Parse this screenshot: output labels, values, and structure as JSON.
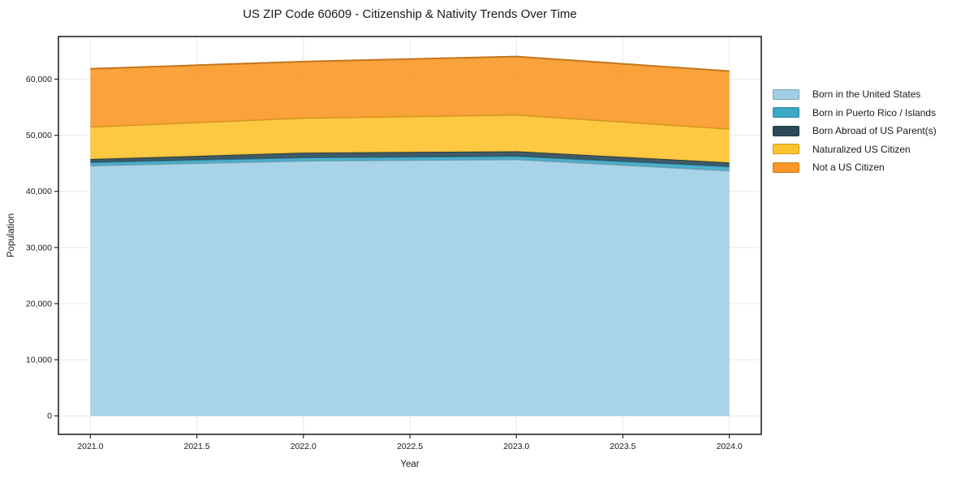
{
  "title": "US ZIP Code 60609 - Citizenship & Nativity Trends Over Time",
  "chart_data": {
    "type": "area",
    "stacked": true,
    "title": "US ZIP Code 60609 - Citizenship & Nativity Trends Over Time",
    "xlabel": "Year",
    "ylabel": "Population",
    "x": [
      2021,
      2022,
      2023,
      2024
    ],
    "series": [
      {
        "name": "Born in the United States",
        "color": "#9fcee5",
        "values": [
          44600,
          45450,
          45700,
          43700
        ]
      },
      {
        "name": "Born in Puerto Rico / Islands",
        "color": "#3da7c6",
        "values": [
          575,
          575,
          575,
          720
        ]
      },
      {
        "name": "Born Abroad of US Parent(s)",
        "color": "#2b4a58",
        "values": [
          575,
          860,
          860,
          720
        ]
      },
      {
        "name": "Naturalized US Citizen",
        "color": "#fdc32e",
        "values": [
          5750,
          6200,
          6500,
          6000
        ]
      },
      {
        "name": "Not a US Citizen",
        "color": "#f99826",
        "values": [
          10350,
          10050,
          10400,
          10300
        ]
      }
    ],
    "stack_totals": [
      61850,
      63135,
      64035,
      61440
    ],
    "xlim": [
      2020.85,
      2024.15
    ],
    "ylim": [
      -3300,
      67600
    ],
    "x_ticks": [
      {
        "value": 2021.0,
        "label": "2021.0"
      },
      {
        "value": 2021.5,
        "label": "2021.5"
      },
      {
        "value": 2022.0,
        "label": "2022.0"
      },
      {
        "value": 2022.5,
        "label": "2022.5"
      },
      {
        "value": 2023.0,
        "label": "2023.0"
      },
      {
        "value": 2023.5,
        "label": "2023.5"
      },
      {
        "value": 2024.0,
        "label": "2024.0"
      }
    ],
    "y_ticks": [
      {
        "value": 0,
        "label": "0"
      },
      {
        "value": 10000,
        "label": "10,000"
      },
      {
        "value": 20000,
        "label": "20,000"
      },
      {
        "value": 30000,
        "label": "30,000"
      },
      {
        "value": 40000,
        "label": "40,000"
      },
      {
        "value": 50000,
        "label": "50,000"
      },
      {
        "value": 60000,
        "label": "60,000"
      }
    ],
    "grid": true,
    "grid_color": "#e8e8e8",
    "fill_alpha": 0.9,
    "spine_color": "#262626",
    "legend_position": "right"
  }
}
